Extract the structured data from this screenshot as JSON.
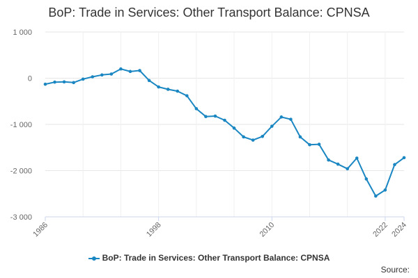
{
  "chart_data": {
    "type": "line",
    "title": "BoP: Trade in Services: Other Transport Balance: CPNSA",
    "xlabel": "",
    "ylabel": "",
    "x": [
      1986,
      1987,
      1988,
      1989,
      1990,
      1991,
      1992,
      1993,
      1994,
      1995,
      1996,
      1997,
      1998,
      1999,
      2000,
      2001,
      2002,
      2003,
      2004,
      2005,
      2006,
      2007,
      2008,
      2009,
      2010,
      2011,
      2012,
      2013,
      2014,
      2015,
      2016,
      2017,
      2018,
      2019,
      2020,
      2021,
      2022,
      2023,
      2024
    ],
    "series": [
      {
        "name": "BoP: Trade in Services: Other Transport Balance: CPNSA",
        "values": [
          -130,
          -85,
          -80,
          -95,
          -20,
          30,
          70,
          90,
          200,
          145,
          165,
          -50,
          -190,
          -240,
          -280,
          -380,
          -660,
          -830,
          -820,
          -910,
          -1080,
          -1270,
          -1340,
          -1260,
          -1040,
          -840,
          -890,
          -1270,
          -1440,
          -1430,
          -1770,
          -1860,
          -1960,
          -1730,
          -2180,
          -2550,
          -2420,
          -1870,
          -1720
        ]
      }
    ],
    "ylim": [
      -3000,
      1000
    ],
    "y_ticks": [
      1000,
      0,
      -1000,
      -2000,
      -3000
    ],
    "y_tick_labels": [
      "1 000",
      "0",
      "-1 000",
      "-2 000",
      "-3 000"
    ],
    "x_ticks": [
      1986,
      1998,
      2010,
      2022,
      2024
    ],
    "x_tick_labels": [
      "1986",
      "1998",
      "2010",
      "2022",
      "2024"
    ],
    "xlim": [
      1986,
      2024
    ],
    "grid": true,
    "legend": "bottom",
    "line_color": "#1a86c2"
  },
  "legend_label": "BoP: Trade in Services: Other Transport Balance: CPNSA",
  "source_label": "Source:"
}
